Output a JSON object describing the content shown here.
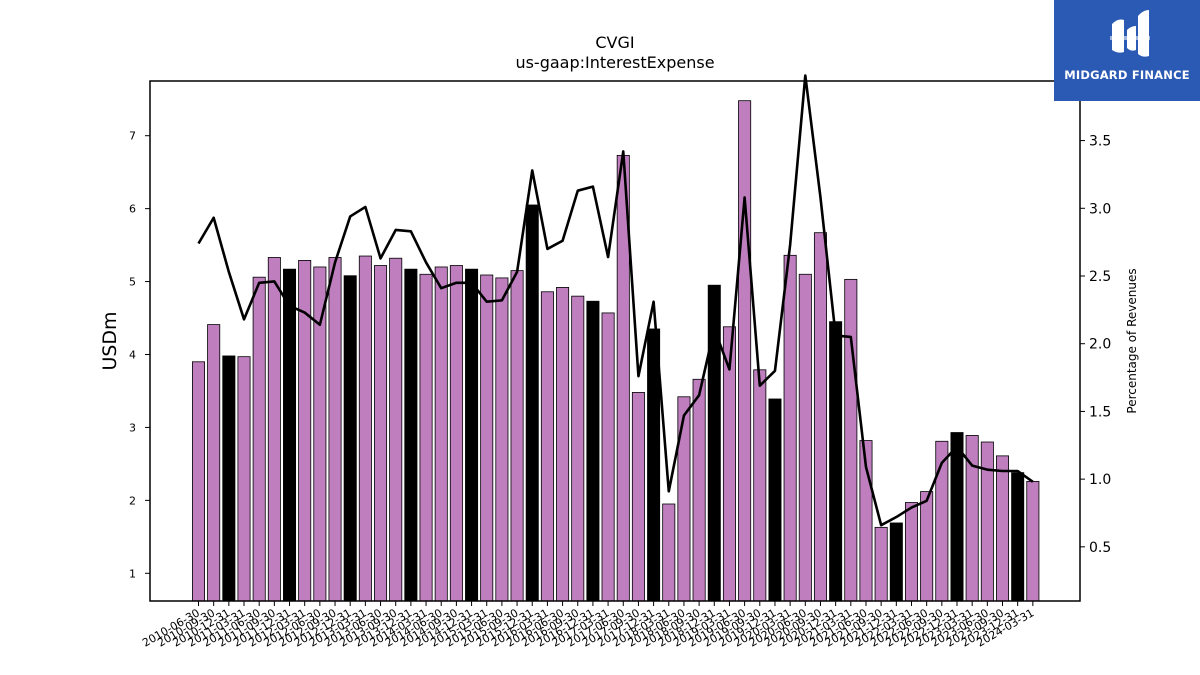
{
  "logo": {
    "text": "MIDGARD FINANCE"
  },
  "chart_data": {
    "type": "bar",
    "title": "CVGI",
    "subtitle": "us-gaap:InterestExpense",
    "ylabel": "USDm",
    "y2label": "Percentage of Revenues",
    "ylim": [
      0.62,
      7.75
    ],
    "y2lim": [
      0.1,
      3.94
    ],
    "yticks": [
      1,
      2,
      3,
      4,
      5,
      6,
      7
    ],
    "y2ticks": [
      0.5,
      1.0,
      1.5,
      2.0,
      2.5,
      3.0,
      3.5
    ],
    "colors": {
      "quarter_bar": "#bf7fbf",
      "fiscal_year_end_bar": "#000000",
      "line": "#000000"
    },
    "categories": [
      "2010-06-30",
      "2010-09-30",
      "2010-12-31",
      "2011-03-31",
      "2011-06-30",
      "2011-09-30",
      "2011-12-31",
      "2012-03-31",
      "2012-06-30",
      "2012-09-30",
      "2012-12-31",
      "2013-03-31",
      "2013-06-30",
      "2013-09-30",
      "2013-12-31",
      "2014-03-31",
      "2014-06-30",
      "2014-09-30",
      "2014-12-31",
      "2015-03-31",
      "2015-06-30",
      "2015-09-30",
      "2015-12-31",
      "2016-03-31",
      "2016-06-30",
      "2016-09-30",
      "2016-12-31",
      "2017-03-31",
      "2017-06-30",
      "2017-09-30",
      "2017-12-31",
      "2018-03-31",
      "2018-06-30",
      "2018-09-30",
      "2018-12-31",
      "2019-03-31",
      "2019-06-30",
      "2019-09-30",
      "2019-12-31",
      "2020-03-31",
      "2020-06-30",
      "2020-09-30",
      "2020-12-31",
      "2021-03-31",
      "2021-06-30",
      "2021-09-30",
      "2021-12-31",
      "2022-03-31",
      "2022-06-30",
      "2022-09-30",
      "2022-12-31",
      "2023-03-31",
      "2023-06-30",
      "2023-09-30",
      "2023-12-31",
      "2024-03-31"
    ],
    "series": [
      {
        "kind": "bar",
        "values": [
          3.9,
          4.41,
          3.98,
          3.97,
          5.06,
          5.33,
          5.17,
          5.29,
          5.2,
          5.33,
          5.08,
          5.35,
          5.22,
          5.32,
          5.17,
          5.1,
          5.2,
          5.22,
          5.17,
          5.09,
          5.05,
          5.15,
          6.05,
          4.86,
          4.92,
          4.8,
          4.73,
          4.57,
          6.73,
          3.48,
          4.35,
          1.95,
          3.42,
          3.66,
          4.95,
          4.38,
          7.48,
          3.79,
          3.39,
          5.36,
          5.1,
          5.67,
          4.45,
          5.03,
          2.82,
          1.63,
          1.69,
          1.97,
          2.12,
          2.81,
          2.93,
          2.89,
          2.8,
          2.61,
          2.38,
          2.26
        ],
        "fiscal_year_end": [
          false,
          false,
          true,
          false,
          false,
          false,
          true,
          false,
          false,
          false,
          true,
          false,
          false,
          false,
          true,
          false,
          false,
          false,
          true,
          false,
          false,
          false,
          true,
          false,
          false,
          false,
          true,
          false,
          false,
          false,
          true,
          false,
          false,
          false,
          true,
          false,
          false,
          false,
          true,
          false,
          false,
          false,
          true,
          false,
          false,
          false,
          true,
          false,
          false,
          false,
          true,
          false,
          false,
          false,
          true,
          false
        ]
      },
      {
        "kind": "line",
        "axis": "right",
        "values": [
          2.74,
          2.93,
          2.53,
          2.18,
          2.45,
          2.46,
          2.28,
          2.23,
          2.14,
          2.6,
          2.94,
          3.01,
          2.63,
          2.84,
          2.83,
          2.6,
          2.41,
          2.45,
          2.45,
          2.31,
          2.32,
          2.53,
          3.28,
          2.7,
          2.76,
          3.13,
          3.16,
          2.64,
          3.42,
          1.76,
          2.31,
          0.91,
          1.47,
          1.62,
          2.11,
          1.81,
          3.08,
          1.69,
          1.8,
          2.73,
          3.98,
          3.08,
          2.06,
          2.05,
          1.09,
          0.66,
          0.72,
          0.79,
          0.84,
          1.12,
          1.24,
          1.1,
          1.07,
          1.06,
          1.06,
          0.98
        ]
      }
    ]
  }
}
